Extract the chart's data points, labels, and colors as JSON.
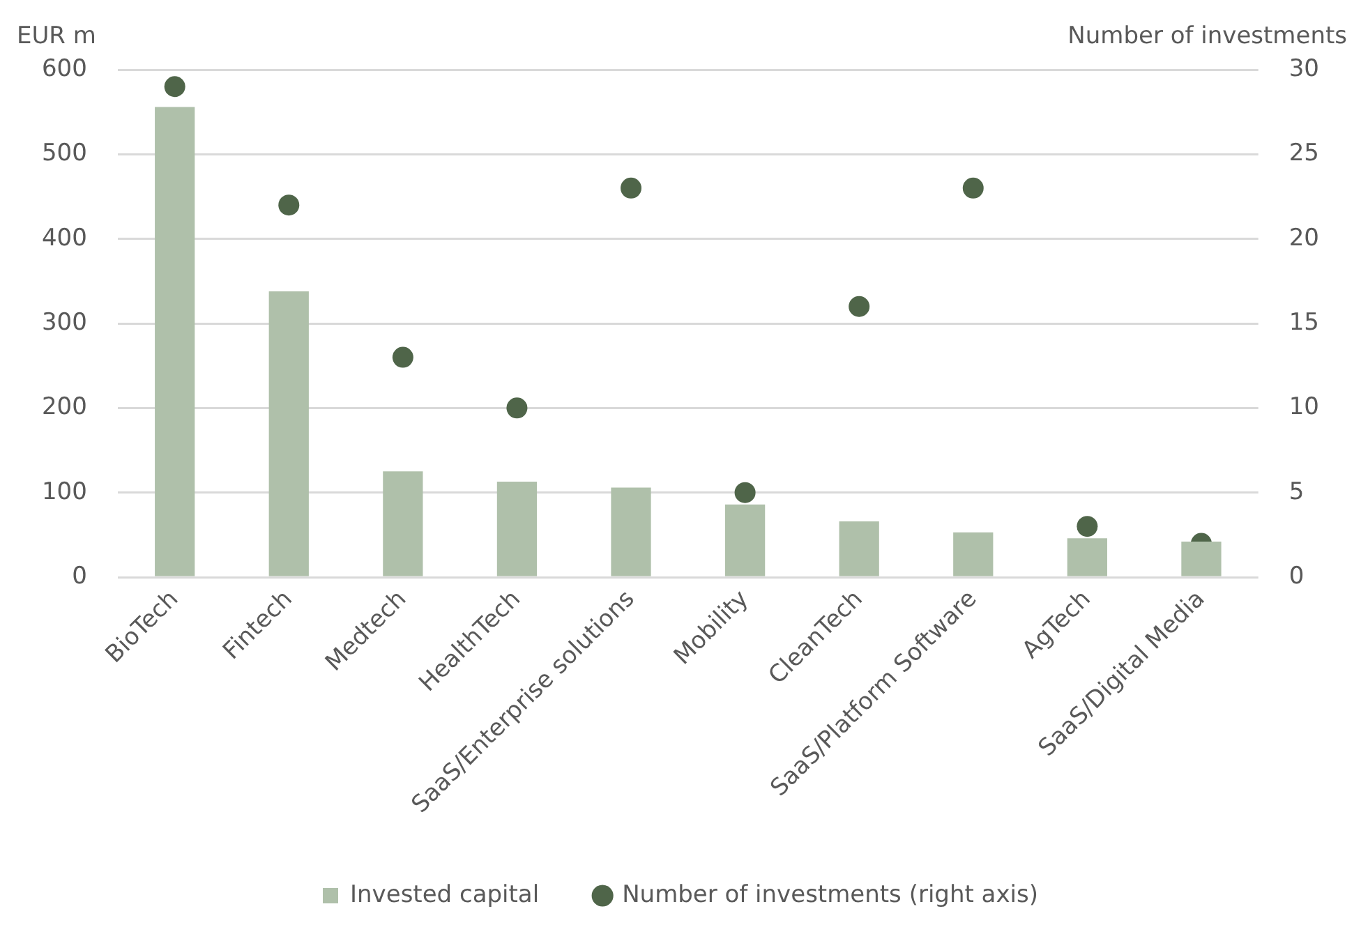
{
  "chart_data": {
    "type": "bar",
    "ylabel": "EUR m",
    "y2label": "Number of investments",
    "categories": [
      "BioTech",
      "Fintech",
      "Medtech",
      "HealthTech",
      "SaaS/Enterprise solutions",
      "Mobility",
      "CleanTech",
      "SaaS/Platform Software",
      "AgTech",
      "SaaS/Digital Media"
    ],
    "series": [
      {
        "name": "Invested capital",
        "color": "#afc0aa",
        "values": [
          556,
          338,
          125,
          113,
          106,
          86,
          66,
          53,
          46,
          42
        ]
      },
      {
        "name": "Number of investments (right axis)",
        "type": "scatter",
        "axis": "y2",
        "marker": "circle",
        "color": "#4f6549",
        "values": [
          29,
          22,
          13,
          10,
          23,
          5,
          16,
          23,
          3,
          2
        ]
      }
    ],
    "ylim": [
      0,
      600
    ],
    "yticks": [
      0,
      100,
      200,
      300,
      400,
      500,
      600
    ],
    "y2lim": [
      0,
      30
    ],
    "y2ticks": [
      0,
      5,
      10,
      15,
      20,
      25,
      30
    ],
    "grid": "y",
    "legend": "bottom"
  }
}
